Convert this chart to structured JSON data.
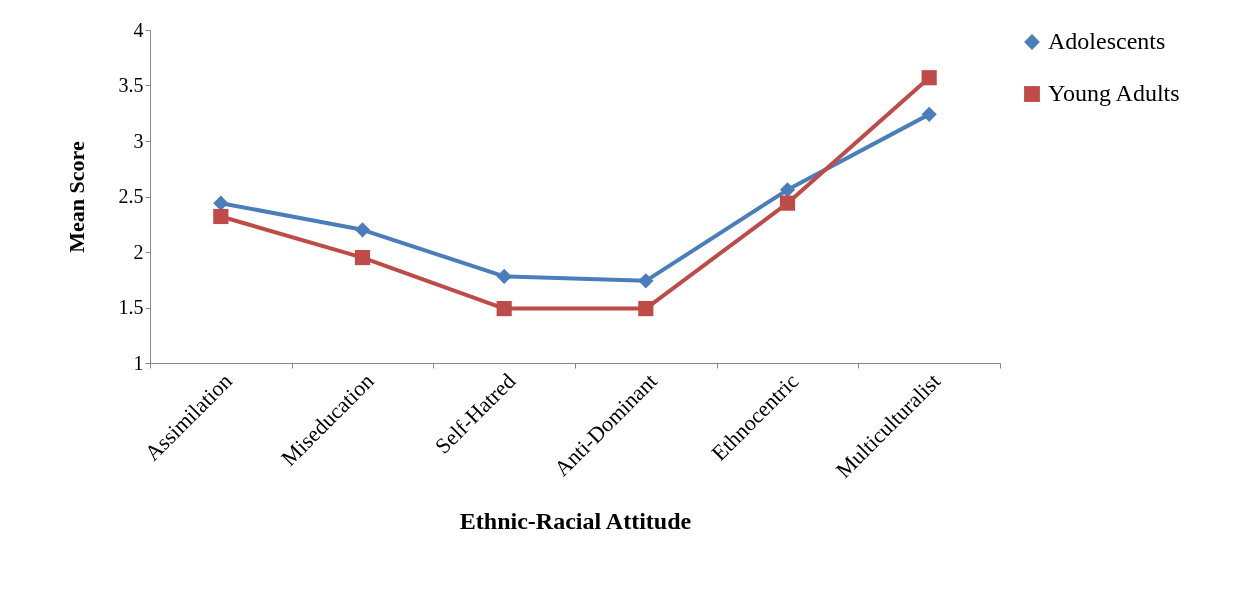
{
  "chart_data": {
    "type": "line",
    "xlabel": "Ethnic-Racial Attitude",
    "ylabel": "Mean Score",
    "categories": [
      "Assimilation",
      "Miseducation",
      "Self-Hatred",
      "Anti-Dominant",
      "Ethnocentric",
      "Multiculturalist"
    ],
    "series": [
      {
        "name": "Adolescents",
        "color": "#4a7ebb",
        "marker": "diamond",
        "values": [
          2.44,
          2.2,
          1.78,
          1.74,
          2.56,
          3.24
        ]
      },
      {
        "name": "Young Adults",
        "color": "#be4b48",
        "marker": "square",
        "values": [
          2.32,
          1.95,
          1.49,
          1.49,
          2.44,
          3.57
        ]
      }
    ],
    "ylim": [
      1,
      4
    ],
    "yticks": [
      {
        "value": 1,
        "label": "1"
      },
      1.5,
      {
        "value": 2,
        "label": "2"
      },
      2.5,
      {
        "value": 3,
        "label": "3"
      },
      3.5,
      {
        "value": 4,
        "label": "4"
      }
    ],
    "grid": false,
    "legend": "right",
    "line_style": "solid"
  }
}
